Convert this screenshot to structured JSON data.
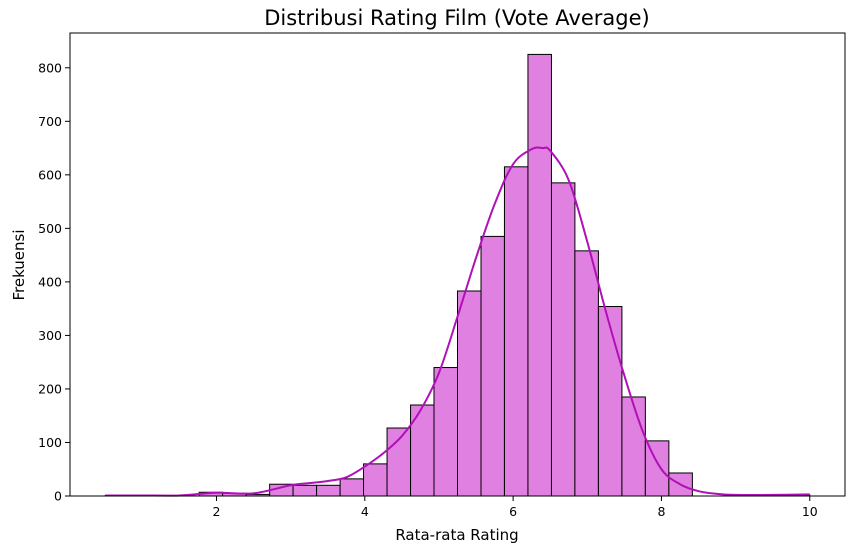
{
  "chart_data": {
    "type": "bar",
    "title": "Distribusi Rating Film (Vote Average)",
    "xlabel": "Rata-rata Rating",
    "ylabel": "Frekuensi",
    "xlim": [
      0.025,
      10.475
    ],
    "ylim": [
      0,
      865
    ],
    "xticks": [
      2,
      4,
      6,
      8,
      10
    ],
    "yticks": [
      0,
      100,
      200,
      300,
      400,
      500,
      600,
      700,
      800
    ],
    "grid": false,
    "legend": "none",
    "bar_color": "#e080e0",
    "bar_edge_color": "#000000",
    "kde_color": "#b010b8",
    "bins": [
      {
        "x0": 0.5,
        "x1": 0.817,
        "count": 1
      },
      {
        "x0": 0.817,
        "x1": 1.133,
        "count": 0
      },
      {
        "x0": 1.133,
        "x1": 1.45,
        "count": 0
      },
      {
        "x0": 1.45,
        "x1": 1.767,
        "count": 0
      },
      {
        "x0": 1.767,
        "x1": 2.083,
        "count": 7
      },
      {
        "x0": 2.083,
        "x1": 2.4,
        "count": 5
      },
      {
        "x0": 2.4,
        "x1": 2.717,
        "count": 3
      },
      {
        "x0": 2.717,
        "x1": 3.033,
        "count": 22
      },
      {
        "x0": 3.033,
        "x1": 3.35,
        "count": 20
      },
      {
        "x0": 3.35,
        "x1": 3.667,
        "count": 20
      },
      {
        "x0": 3.667,
        "x1": 3.983,
        "count": 32
      },
      {
        "x0": 3.983,
        "x1": 4.3,
        "count": 60
      },
      {
        "x0": 4.3,
        "x1": 4.617,
        "count": 127
      },
      {
        "x0": 4.617,
        "x1": 4.933,
        "count": 170
      },
      {
        "x0": 4.933,
        "x1": 5.25,
        "count": 240
      },
      {
        "x0": 5.25,
        "x1": 5.567,
        "count": 383
      },
      {
        "x0": 5.567,
        "x1": 5.883,
        "count": 485
      },
      {
        "x0": 5.883,
        "x1": 6.2,
        "count": 615
      },
      {
        "x0": 6.2,
        "x1": 6.517,
        "count": 825
      },
      {
        "x0": 6.517,
        "x1": 6.833,
        "count": 585
      },
      {
        "x0": 6.833,
        "x1": 7.15,
        "count": 458
      },
      {
        "x0": 7.15,
        "x1": 7.467,
        "count": 354
      },
      {
        "x0": 7.467,
        "x1": 7.783,
        "count": 185
      },
      {
        "x0": 7.783,
        "x1": 8.1,
        "count": 103
      },
      {
        "x0": 8.1,
        "x1": 8.417,
        "count": 43
      },
      {
        "x0": 8.417,
        "x1": 8.733,
        "count": 0
      },
      {
        "x0": 8.733,
        "x1": 9.05,
        "count": 0
      },
      {
        "x0": 9.05,
        "x1": 9.367,
        "count": 0
      },
      {
        "x0": 9.367,
        "x1": 9.683,
        "count": 0
      },
      {
        "x0": 9.683,
        "x1": 10.0,
        "count": 2
      }
    ],
    "kde": {
      "x": [
        0.5,
        1.0,
        1.5,
        2.0,
        2.5,
        3.0,
        3.25,
        3.5,
        3.75,
        4.0,
        4.25,
        4.5,
        4.75,
        5.0,
        5.25,
        5.5,
        5.75,
        6.0,
        6.25,
        6.4,
        6.5,
        6.75,
        7.0,
        7.25,
        7.5,
        7.75,
        8.0,
        8.25,
        8.5,
        8.75,
        9.0,
        9.5,
        10.0
      ],
      "y": [
        1,
        1,
        1,
        6,
        5,
        20,
        24,
        28,
        35,
        55,
        80,
        112,
        160,
        230,
        335,
        445,
        545,
        620,
        648,
        650,
        645,
        590,
        475,
        345,
        225,
        120,
        50,
        22,
        9,
        4,
        2,
        2,
        3
      ]
    }
  }
}
